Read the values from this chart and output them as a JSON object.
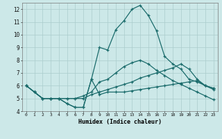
{
  "xlabel": "Humidex (Indice chaleur)",
  "bg_color": "#cce8e8",
  "grid_color": "#aacccc",
  "line_color": "#1a6b6b",
  "xlim": [
    -0.5,
    23.5
  ],
  "ylim": [
    4,
    12.5
  ],
  "ytick_min": 4,
  "ytick_max": 12,
  "xticks": [
    0,
    1,
    2,
    3,
    4,
    5,
    6,
    7,
    8,
    9,
    10,
    11,
    12,
    13,
    14,
    15,
    16,
    17,
    18,
    19,
    20,
    21,
    22,
    23
  ],
  "yticks": [
    4,
    5,
    6,
    7,
    8,
    9,
    10,
    11,
    12
  ],
  "series": [
    [
      6.0,
      5.5,
      5.0,
      5.0,
      5.0,
      4.6,
      4.3,
      4.3,
      6.5,
      5.3,
      5.5,
      5.5,
      5.5,
      5.6,
      5.7,
      5.8,
      5.9,
      6.0,
      6.1,
      6.2,
      6.3,
      6.4,
      6.0,
      5.8
    ],
    [
      6.0,
      5.5,
      5.0,
      5.0,
      5.0,
      5.0,
      5.0,
      5.0,
      5.3,
      5.5,
      5.7,
      5.9,
      6.1,
      6.3,
      6.6,
      6.8,
      7.0,
      7.2,
      7.4,
      7.7,
      7.3,
      6.5,
      6.0,
      5.8
    ],
    [
      6.0,
      5.5,
      5.0,
      5.0,
      5.0,
      5.0,
      5.0,
      5.2,
      5.5,
      6.3,
      6.5,
      7.0,
      7.5,
      7.8,
      8.0,
      7.7,
      7.2,
      6.8,
      6.4,
      6.1,
      5.8,
      5.5,
      5.2,
      4.9
    ],
    [
      6.0,
      5.5,
      5.0,
      5.0,
      5.0,
      4.6,
      4.3,
      4.3,
      6.5,
      9.0,
      8.8,
      10.4,
      11.1,
      12.0,
      12.3,
      11.5,
      10.3,
      8.3,
      7.7,
      7.3,
      6.5,
      6.3,
      6.0,
      5.7
    ]
  ]
}
